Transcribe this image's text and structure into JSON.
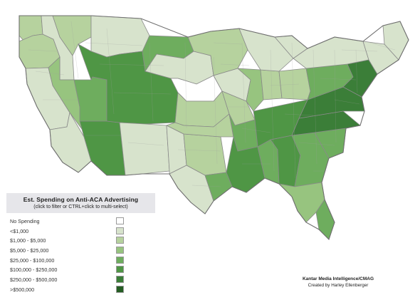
{
  "legend": {
    "title": "Est. Spending on Anti-ACA Advertising",
    "subtitle": "(click to filter or CTRL+click to multi-select)",
    "items": [
      {
        "label": "No Spending",
        "color": "#ffffff"
      },
      {
        "label": "<$1,000",
        "color": "#d7e3cc"
      },
      {
        "label": "$1,000 - $5,000",
        "color": "#b6d29e"
      },
      {
        "label": "$5,000 - $25,000",
        "color": "#97c47f"
      },
      {
        "label": "$25,000 - $100,000",
        "color": "#6ead5e"
      },
      {
        "label": "$100,000 - $250,000",
        "color": "#4f9645"
      },
      {
        "label": "$250,000 - $500,000",
        "color": "#3b7e38"
      },
      {
        "label": ">$500,000",
        "color": "#255d23"
      }
    ]
  },
  "credits": {
    "line1": "Kantar Media Intelligence/CMAG",
    "line2": "Created by Harley Ellenberger"
  },
  "map": {
    "border_color": "#8a8a8a",
    "regions": [
      {
        "name": "pacific-northwest",
        "level": 2
      },
      {
        "name": "oregon",
        "level": 2
      },
      {
        "name": "northern-california",
        "level": 1
      },
      {
        "name": "southern-california",
        "level": 1
      },
      {
        "name": "idaho",
        "level": 1
      },
      {
        "name": "nevada",
        "level": 3
      },
      {
        "name": "utah",
        "level": 4
      },
      {
        "name": "arizona",
        "level": 5
      },
      {
        "name": "montana-west",
        "level": 2
      },
      {
        "name": "montana-east",
        "level": 1
      },
      {
        "name": "wyoming-colorado",
        "level": 5
      },
      {
        "name": "new-mexico",
        "level": 1
      },
      {
        "name": "west-texas",
        "level": 1
      },
      {
        "name": "central-texas",
        "level": 2
      },
      {
        "name": "south-texas",
        "level": 1
      },
      {
        "name": "houston",
        "level": 4
      },
      {
        "name": "north-dakota",
        "level": 4
      },
      {
        "name": "south-dakota",
        "level": 1
      },
      {
        "name": "nebraska",
        "level": 0
      },
      {
        "name": "kansas",
        "level": 2
      },
      {
        "name": "oklahoma",
        "level": 2
      },
      {
        "name": "minnesota",
        "level": 2
      },
      {
        "name": "iowa",
        "level": 1
      },
      {
        "name": "missouri",
        "level": 2
      },
      {
        "name": "arkansas",
        "level": 4
      },
      {
        "name": "louisiana",
        "level": 5
      },
      {
        "name": "mississippi",
        "level": 4
      },
      {
        "name": "alabama",
        "level": 5
      },
      {
        "name": "georgia",
        "level": 4
      },
      {
        "name": "florida-north",
        "level": 3
      },
      {
        "name": "florida-south",
        "level": 4
      },
      {
        "name": "south-carolina",
        "level": 4
      },
      {
        "name": "north-carolina",
        "level": 6
      },
      {
        "name": "virginia",
        "level": 6
      },
      {
        "name": "kentucky-tennessee",
        "level": 5
      },
      {
        "name": "illinois",
        "level": 3
      },
      {
        "name": "indiana",
        "level": 2
      },
      {
        "name": "ohio",
        "level": 2
      },
      {
        "name": "michigan",
        "level": 1
      },
      {
        "name": "wisconsin",
        "level": 1
      },
      {
        "name": "pennsylvania",
        "level": 4
      },
      {
        "name": "new-york",
        "level": 1
      },
      {
        "name": "new-jersey",
        "level": 6
      },
      {
        "name": "new-england",
        "level": 1
      },
      {
        "name": "maine",
        "level": 1
      }
    ]
  }
}
